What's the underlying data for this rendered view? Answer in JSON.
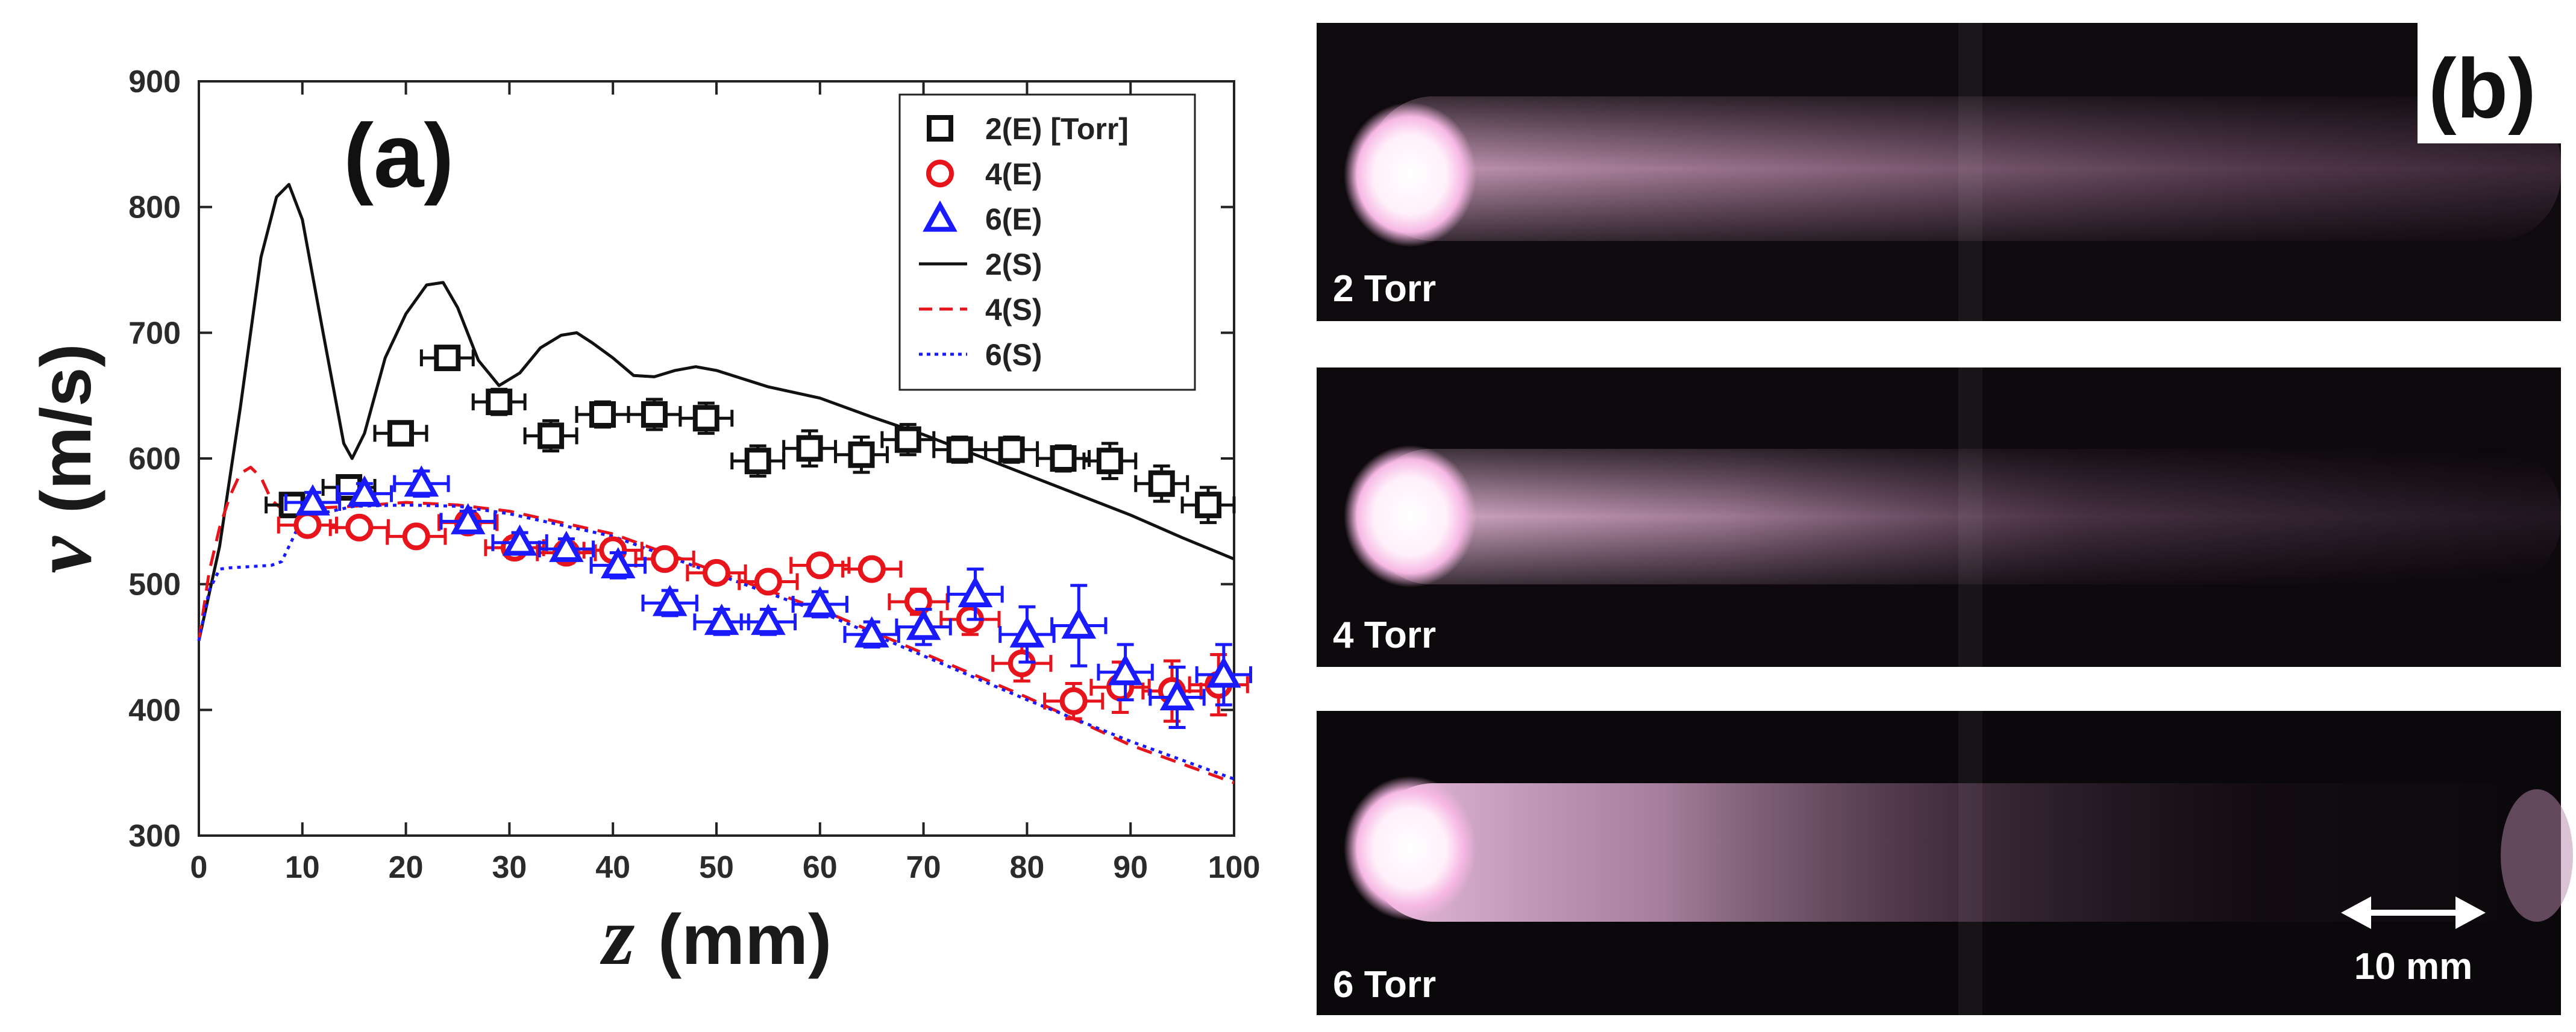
{
  "panel_a": {
    "label": "(a)",
    "chart_data": {
      "type": "scatter",
      "xlabel_var": "z",
      "xlabel_unit": "(mm)",
      "ylabel_var": "v",
      "ylabel_unit": "(m/s)",
      "xlim": [
        0,
        100
      ],
      "ylim": [
        300,
        900
      ],
      "xticks": [
        0,
        10,
        20,
        30,
        40,
        50,
        60,
        70,
        80,
        90,
        100
      ],
      "yticks": [
        300,
        400,
        500,
        600,
        700,
        800,
        900
      ],
      "legend_position": "top-right",
      "colors": {
        "p2": "#111111",
        "p4": "#e8141c",
        "p6": "#1a1aff"
      },
      "experimental_series": [
        {
          "name": "2(E) [Torr]",
          "marker": "square",
          "color": "#111111",
          "x": [
            9,
            14.5,
            19.5,
            24,
            29,
            34,
            39,
            44,
            49,
            54,
            59,
            64,
            68.5,
            73.5,
            78.5,
            83.5,
            88,
            93,
            97.5
          ],
          "y": [
            563,
            577,
            620,
            680,
            645,
            618,
            635,
            635,
            632,
            598,
            608,
            603,
            615,
            607,
            607,
            600,
            598,
            580,
            563
          ],
          "yerr": [
            8,
            8,
            8,
            8,
            10,
            12,
            10,
            12,
            12,
            12,
            14,
            14,
            12,
            10,
            10,
            10,
            14,
            14,
            14
          ],
          "xerr": [
            2.5,
            2.5,
            2.5,
            2.5,
            2.5,
            2.5,
            2.5,
            2.5,
            2.5,
            2.5,
            2.5,
            2.5,
            2.5,
            2.5,
            2.5,
            2.5,
            2.5,
            2.5,
            2.5
          ]
        },
        {
          "name": "4(E)",
          "marker": "circle",
          "color": "#e8141c",
          "x": [
            10.5,
            15.5,
            21,
            26,
            30.5,
            35.5,
            40,
            45,
            50,
            55,
            60,
            65,
            69.5,
            74.5,
            79.5,
            84.5,
            89,
            94,
            98.5
          ],
          "y": [
            547,
            545,
            538,
            549,
            529,
            525,
            527,
            520,
            509,
            502,
            515,
            512,
            486,
            472,
            437,
            407,
            418,
            415,
            420
          ],
          "yerr": [
            6,
            6,
            6,
            6,
            8,
            8,
            8,
            8,
            8,
            8,
            8,
            8,
            10,
            12,
            14,
            14,
            20,
            24,
            24
          ],
          "xerr": [
            2.8,
            2.8,
            2.8,
            2.8,
            2.8,
            2.8,
            2.8,
            2.8,
            2.8,
            2.8,
            2.8,
            2.8,
            2.8,
            2.8,
            2.8,
            2.8,
            2.8,
            2.8,
            2.8
          ]
        },
        {
          "name": "6(E)",
          "marker": "triangle",
          "color": "#1a1aff",
          "x": [
            11,
            16,
            21.5,
            26,
            31,
            35.5,
            40.5,
            45.5,
            50.5,
            55,
            60,
            65,
            70,
            75,
            80,
            85,
            89.5,
            94.5,
            99
          ],
          "y": [
            565,
            572,
            580,
            550,
            533,
            528,
            515,
            485,
            470,
            470,
            484,
            460,
            466,
            492,
            460,
            467,
            430,
            410,
            428
          ],
          "yerr": [
            8,
            8,
            10,
            8,
            8,
            8,
            10,
            10,
            10,
            10,
            10,
            10,
            14,
            20,
            22,
            32,
            22,
            24,
            24
          ],
          "xerr": [
            2.6,
            2.6,
            2.6,
            2.6,
            2.6,
            2.6,
            2.6,
            2.6,
            2.6,
            2.6,
            2.6,
            2.6,
            2.6,
            2.6,
            2.6,
            2.6,
            2.6,
            2.6,
            2.6
          ]
        }
      ],
      "simulation_series": [
        {
          "name": "2(S)",
          "style": "solid",
          "color": "#111111",
          "x": [
            0,
            2,
            4,
            6,
            7.5,
            8.7,
            10,
            12,
            14,
            14.8,
            16,
            18,
            20,
            22,
            23.6,
            25,
            27,
            29,
            31,
            33,
            35,
            36.5,
            38,
            40,
            42,
            44,
            46,
            48,
            50,
            55,
            60,
            65,
            70,
            75,
            80,
            85,
            90,
            95,
            100
          ],
          "y": [
            455,
            530,
            640,
            760,
            808,
            818,
            790,
            700,
            612,
            600,
            620,
            680,
            715,
            738,
            740,
            720,
            678,
            658,
            668,
            688,
            698,
            700,
            692,
            680,
            666,
            665,
            670,
            673,
            670,
            657,
            648,
            633,
            619,
            603,
            587,
            571,
            555,
            537,
            520
          ]
        },
        {
          "name": "4(S)",
          "style": "dashed",
          "color": "#e8141c",
          "x": [
            0,
            1,
            2,
            3,
            4,
            5,
            6,
            7,
            8,
            10,
            15,
            20,
            25,
            30,
            40,
            50,
            60,
            70,
            80,
            90,
            100
          ],
          "y": [
            455,
            510,
            545,
            570,
            588,
            593,
            585,
            567,
            560,
            560,
            562,
            565,
            563,
            558,
            540,
            510,
            480,
            445,
            410,
            372,
            342
          ]
        },
        {
          "name": "6(S)",
          "style": "dotted",
          "color": "#1a1aff",
          "x": [
            0,
            1,
            2,
            3,
            5,
            7,
            8,
            9,
            10,
            15,
            20,
            25,
            30,
            40,
            50,
            60,
            70,
            80,
            90,
            100
          ],
          "y": [
            455,
            495,
            512,
            513,
            514,
            515,
            518,
            535,
            553,
            562,
            563,
            562,
            556,
            538,
            508,
            478,
            443,
            408,
            375,
            345
          ]
        }
      ]
    }
  },
  "panel_b": {
    "label": "(b)",
    "photos": [
      {
        "label": "2 Torr"
      },
      {
        "label": "4 Torr"
      },
      {
        "label": "6 Torr"
      }
    ],
    "scale_bar_label": "10 mm"
  }
}
